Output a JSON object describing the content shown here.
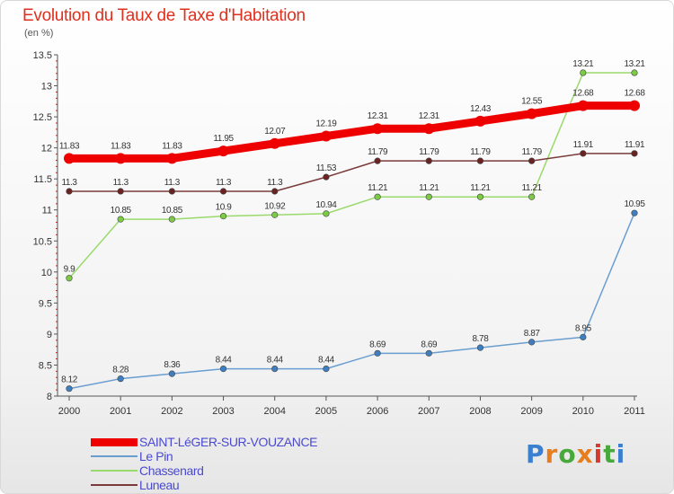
{
  "title": "Evolution du Taux de Taxe d'Habitation",
  "unit_label": "(en %)",
  "logo": {
    "text": "Proxiti",
    "colors": [
      "#3a7fd0",
      "#e87d1e",
      "#47a83b",
      "#e87d1e",
      "#d43a2f",
      "#47a83b",
      "#3a7fd0"
    ]
  },
  "chart_data": {
    "type": "line",
    "x": [
      "2000",
      "2001",
      "2002",
      "2003",
      "2004",
      "2005",
      "2006",
      "2007",
      "2008",
      "2009",
      "2010",
      "2011"
    ],
    "yticks": [
      "8",
      "8.5",
      "9",
      "9.5",
      "10",
      "10.5",
      "11",
      "11.5",
      "12",
      "12.5",
      "13",
      "13.5"
    ],
    "ylim": [
      8,
      13.5
    ],
    "grid": false,
    "legend_position": "bottom-left",
    "series": [
      {
        "name": "SAINT-LéGER-SUR-VOUZANCE",
        "color": "#ee0000",
        "marker": "#ee0000",
        "thick": true,
        "values": [
          11.83,
          11.83,
          11.83,
          11.95,
          12.07,
          12.19,
          12.31,
          12.31,
          12.43,
          12.55,
          12.68,
          12.68
        ],
        "labels": [
          "11.83",
          "11.83",
          "11.83",
          "11.95",
          "12.07",
          "12.19",
          "12.31",
          "12.31",
          "12.43",
          "12.55",
          "12.68",
          "12.68"
        ]
      },
      {
        "name": "Le Pin",
        "color": "#6a9ed0",
        "marker": "#3f7fc0",
        "thick": false,
        "values": [
          8.12,
          8.28,
          8.36,
          8.44,
          8.44,
          8.44,
          8.69,
          8.69,
          8.78,
          8.87,
          8.95,
          10.95
        ],
        "labels": [
          "8.12",
          "8.28",
          "8.36",
          "8.44",
          "8.44",
          "8.44",
          "8.69",
          "8.69",
          "8.78",
          "8.87",
          "8.95",
          "10.95"
        ]
      },
      {
        "name": "Chassenard",
        "color": "#9ada6c",
        "marker": "#7ccb45",
        "thick": false,
        "values": [
          9.9,
          10.85,
          10.85,
          10.9,
          10.92,
          10.94,
          11.21,
          11.21,
          11.21,
          11.21,
          13.21,
          13.21
        ],
        "labels": [
          "9.9",
          "10.85",
          "10.85",
          "10.9",
          "10.92",
          "10.94",
          "11.21",
          "11.21",
          "11.21",
          "11.21",
          "13.21",
          "13.21"
        ]
      },
      {
        "name": "Luneau",
        "color": "#7a3a3a",
        "marker": "#6a2323",
        "thick": false,
        "values": [
          11.3,
          11.3,
          11.3,
          11.3,
          11.3,
          11.53,
          11.79,
          11.79,
          11.79,
          11.79,
          11.91,
          11.91
        ],
        "labels": [
          "11.3",
          "11.3",
          "11.3",
          "11.3",
          "11.3",
          "11.53",
          "11.79",
          "11.79",
          "11.79",
          "11.79",
          "11.91",
          "11.91"
        ]
      }
    ]
  }
}
